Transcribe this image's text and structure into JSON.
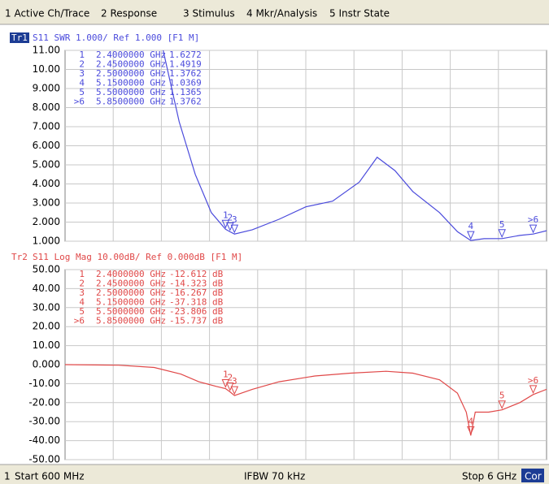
{
  "menu": [
    "1 Active Ch/Trace",
    "2 Response",
    "3 Stimulus",
    "4 Mkr/Analysis",
    "5 Instr State"
  ],
  "chart_data": [
    {
      "type": "line",
      "trace": "Tr1",
      "header": "S11 SWR 1.000/ Ref 1.000 [F1 M]",
      "color": "#4b4bdc",
      "grid": true,
      "xlim": [
        0.6,
        6
      ],
      "ylim": [
        1,
        11
      ],
      "yticks": [
        {
          "value": 11,
          "label": "11.00"
        },
        {
          "value": 10,
          "label": "10.00"
        },
        {
          "value": 9,
          "label": "9.000"
        },
        {
          "value": 8,
          "label": "8.000"
        },
        {
          "value": 7,
          "label": "7.000"
        },
        {
          "value": 6,
          "label": "6.000"
        },
        {
          "value": 5,
          "label": "5.000"
        },
        {
          "value": 4,
          "label": "4.000"
        },
        {
          "value": 3,
          "label": "3.000"
        },
        {
          "value": 2,
          "label": "2.000"
        },
        {
          "value": 1,
          "label": "1.000"
        }
      ],
      "x": [
        1.7,
        1.88,
        2.06,
        2.24,
        2.4,
        2.45,
        2.5,
        2.7,
        3.0,
        3.3,
        3.6,
        3.9,
        4.1,
        4.3,
        4.5,
        4.8,
        5.0,
        5.15,
        5.3,
        5.5,
        5.7,
        5.85,
        6.0
      ],
      "values": [
        11,
        7.26,
        4.5,
        2.5,
        1.6272,
        1.4919,
        1.3762,
        1.6,
        2.15,
        2.8,
        3.1,
        4.1,
        5.4,
        4.7,
        3.6,
        2.5,
        1.5,
        1.0369,
        1.13,
        1.1365,
        1.3,
        1.3762,
        1.55
      ],
      "markers": {
        "labels": [
          "1",
          "2",
          "3",
          "4",
          "5",
          ">6"
        ],
        "x_labels": [
          "2.4000000 GHz",
          "2.4500000 GHz",
          "2.5000000 GHz",
          "5.1500000 GHz",
          "5.5000000 GHz",
          "5.8500000 GHz"
        ],
        "x": [
          2.4,
          2.45,
          2.5,
          5.15,
          5.5,
          5.85
        ],
        "values": [
          1.6272,
          1.4919,
          1.3762,
          1.0369,
          1.1365,
          1.3762
        ]
      }
    },
    {
      "type": "line",
      "trace": "Tr2",
      "header": "S11 Log Mag 10.00dB/ Ref 0.000dB [F1 M]",
      "color": "#e04848",
      "grid": true,
      "xlim": [
        0.6,
        6
      ],
      "ylim": [
        -50,
        50
      ],
      "yticks": [
        {
          "value": 50,
          "label": "50.00"
        },
        {
          "value": 40,
          "label": "40.00"
        },
        {
          "value": 30,
          "label": "30.00"
        },
        {
          "value": 20,
          "label": "20.00"
        },
        {
          "value": 10,
          "label": "10.00"
        },
        {
          "value": 0,
          "label": "0.000"
        },
        {
          "value": -10,
          "label": "-10.00"
        },
        {
          "value": -20,
          "label": "-20.00"
        },
        {
          "value": -30,
          "label": "-30.00"
        },
        {
          "value": -40,
          "label": "-40.00"
        },
        {
          "value": -50,
          "label": "-50.00"
        }
      ],
      "x": [
        0.6,
        1.2,
        1.6,
        1.9,
        2.1,
        2.3,
        2.4,
        2.45,
        2.5,
        2.7,
        3.0,
        3.4,
        3.8,
        4.2,
        4.5,
        4.8,
        5.0,
        5.1,
        5.15,
        5.2,
        5.35,
        5.5,
        5.7,
        5.85,
        6.0
      ],
      "values": [
        0,
        -0.3,
        -1.5,
        -5,
        -9,
        -11.5,
        -12.612,
        -14.323,
        -16.267,
        -13,
        -9,
        -6,
        -4.5,
        -3.5,
        -4.5,
        -8,
        -15,
        -25,
        -37.318,
        -25,
        -25,
        -23.806,
        -20,
        -15.737,
        -13
      ],
      "markers": {
        "labels": [
          "1",
          "2",
          "3",
          "4",
          "5",
          ">6"
        ],
        "x_labels": [
          "2.4000000 GHz",
          "2.4500000 GHz",
          "2.5000000 GHz",
          "5.1500000 GHz",
          "5.5000000 GHz",
          "5.8500000 GHz"
        ],
        "x": [
          2.4,
          2.45,
          2.5,
          5.15,
          5.5,
          5.85
        ],
        "values": [
          -12.612,
          -14.323,
          -16.267,
          -37.318,
          -23.806,
          -15.737
        ],
        "value_labels": [
          "-12.612 dB",
          "-14.323 dB",
          "-16.267 dB",
          "-37.318 dB",
          "-23.806 dB",
          "-15.737 dB"
        ]
      }
    }
  ],
  "footer": {
    "channel": "1",
    "start": "Start 600 MHz",
    "ifbw": "IFBW 70 kHz",
    "stop": "Stop 6 GHz",
    "cor": "Cor"
  }
}
